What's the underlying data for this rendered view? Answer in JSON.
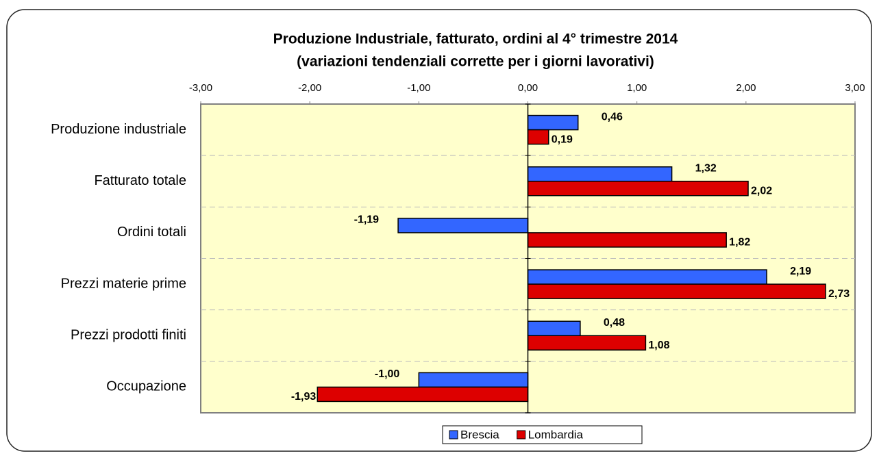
{
  "chart_data": {
    "type": "bar",
    "horizontal": true,
    "title": "Produzione Industriale, fatturato, ordini al 4° trimestre 2014",
    "subtitle": "(variazioni tendenziali corrette per i giorni lavorativi)",
    "categories": [
      "Produzione industriale",
      "Fatturato totale",
      "Ordini totali",
      "Prezzi materie prime",
      "Prezzi prodotti finiti",
      "Occupazione"
    ],
    "series": [
      {
        "name": "Brescia",
        "color": "#3366ff",
        "values": [
          0.46,
          1.32,
          -1.19,
          2.19,
          0.48,
          -1.0
        ],
        "value_labels": [
          "0,46",
          "1,32",
          "-1,19",
          "2,19",
          "0,48",
          "-1,00"
        ]
      },
      {
        "name": "Lombardia",
        "color": "#dd0000",
        "values": [
          0.19,
          2.02,
          1.82,
          2.73,
          1.08,
          -1.93
        ],
        "value_labels": [
          "0,19",
          "2,02",
          "1,82",
          "2,73",
          "1,08",
          "-1,93"
        ]
      }
    ],
    "xlim": [
      -3,
      3
    ],
    "xticks": [
      {
        "value": -3,
        "label": "-3,00"
      },
      {
        "value": -2,
        "label": "-2,00"
      },
      {
        "value": -1,
        "label": "-1,00"
      },
      {
        "value": 0,
        "label": "0,00"
      },
      {
        "value": 1,
        "label": "1,00"
      },
      {
        "value": 2,
        "label": "2,00"
      },
      {
        "value": 3,
        "label": "3,00"
      }
    ],
    "legend": "bottom"
  }
}
